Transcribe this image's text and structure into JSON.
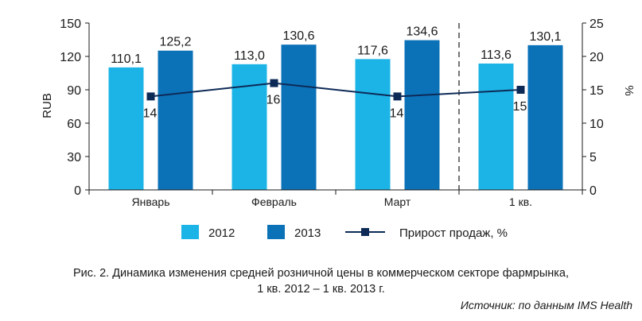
{
  "chart_data": {
    "type": "bar",
    "categories": [
      "Январь",
      "Февраль",
      "Март",
      "1 кв."
    ],
    "series": [
      {
        "name": "2012",
        "type": "bar",
        "axis": "left",
        "color": "#1cb4e6",
        "values": [
          110.1,
          113.0,
          117.6,
          113.6
        ],
        "labels": [
          "110,1",
          "113,0",
          "117,6",
          "113,6"
        ]
      },
      {
        "name": "2013",
        "type": "bar",
        "axis": "left",
        "color": "#0c72b8",
        "values": [
          125.2,
          130.6,
          134.6,
          130.1
        ],
        "labels": [
          "125,2",
          "130,6",
          "134,6",
          "130,1"
        ]
      },
      {
        "name": "Прирост продаж, %",
        "type": "line",
        "axis": "right",
        "color": "#0d2a57",
        "values": [
          14,
          16,
          14,
          15
        ],
        "labels": [
          "14",
          "16",
          "14",
          "15"
        ]
      }
    ],
    "ylabel": "RUB",
    "y2label": "%",
    "ylim": [
      0,
      150
    ],
    "y2lim": [
      0,
      25
    ],
    "yticks": [
      "0",
      "30",
      "60",
      "90",
      "120",
      "150"
    ],
    "y2ticks": [
      "0",
      "5",
      "10",
      "15",
      "20",
      "25"
    ],
    "separator_before_category": "1 кв.",
    "legend_position": "bottom",
    "grid": false
  },
  "caption": {
    "line1": "Рис. 2. Динамика изменения средней розничной цены в коммерческом секторе фармрынка,",
    "line2": "1 кв. 2012 – 1 кв. 2013 г."
  },
  "source": "Источник: по данным IMS Health"
}
